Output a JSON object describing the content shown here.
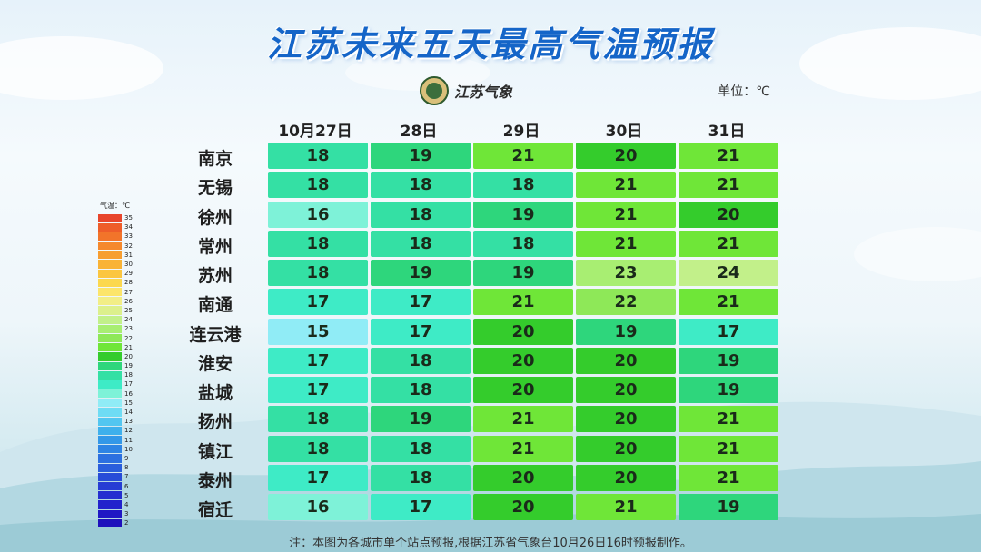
{
  "title": "江苏未来五天最高气温预报",
  "logo_text": "江苏气象",
  "unit_label": "单位：℃",
  "chart_data": {
    "type": "table",
    "columns": [
      "10月27日",
      "28日",
      "29日",
      "30日",
      "31日"
    ],
    "rows": [
      {
        "city": "南京",
        "values": [
          18,
          19,
          21,
          20,
          21
        ]
      },
      {
        "city": "无锡",
        "values": [
          18,
          18,
          18,
          21,
          21
        ]
      },
      {
        "city": "徐州",
        "values": [
          16,
          18,
          19,
          21,
          20
        ]
      },
      {
        "city": "常州",
        "values": [
          18,
          18,
          18,
          21,
          21
        ]
      },
      {
        "city": "苏州",
        "values": [
          18,
          19,
          19,
          23,
          24
        ]
      },
      {
        "city": "南通",
        "values": [
          17,
          17,
          21,
          22,
          21
        ]
      },
      {
        "city": "连云港",
        "values": [
          15,
          17,
          20,
          19,
          17
        ]
      },
      {
        "city": "淮安",
        "values": [
          17,
          18,
          20,
          20,
          19
        ]
      },
      {
        "city": "盐城",
        "values": [
          17,
          18,
          20,
          20,
          19
        ]
      },
      {
        "city": "扬州",
        "values": [
          18,
          19,
          21,
          20,
          21
        ]
      },
      {
        "city": "镇江",
        "values": [
          18,
          18,
          21,
          20,
          21
        ]
      },
      {
        "city": "泰州",
        "values": [
          17,
          18,
          20,
          20,
          21
        ]
      },
      {
        "city": "宿迁",
        "values": [
          16,
          17,
          20,
          21,
          19
        ]
      }
    ]
  },
  "legend": {
    "title": "气温：℃",
    "levels": [
      {
        "value": "35",
        "color": "#e8452c"
      },
      {
        "value": "34",
        "color": "#ee5d2a"
      },
      {
        "value": "33",
        "color": "#f2742a"
      },
      {
        "value": "32",
        "color": "#f5892c"
      },
      {
        "value": "31",
        "color": "#f79e30"
      },
      {
        "value": "30",
        "color": "#f9b336"
      },
      {
        "value": "29",
        "color": "#fbc640"
      },
      {
        "value": "28",
        "color": "#fcd84e"
      },
      {
        "value": "27",
        "color": "#fce56a"
      },
      {
        "value": "26",
        "color": "#f2ee86"
      },
      {
        "value": "25",
        "color": "#dcf08c"
      },
      {
        "value": "24",
        "color": "#c2f08a"
      },
      {
        "value": "23",
        "color": "#a8ee72"
      },
      {
        "value": "22",
        "color": "#8ee858"
      },
      {
        "value": "21",
        "color": "#6fe638"
      },
      {
        "value": "20",
        "color": "#34cc2c"
      },
      {
        "value": "19",
        "color": "#2ed67c"
      },
      {
        "value": "18",
        "color": "#34e0a4"
      },
      {
        "value": "17",
        "color": "#3eebc6"
      },
      {
        "value": "16",
        "color": "#7ef2d8"
      },
      {
        "value": "15",
        "color": "#90ecf6"
      },
      {
        "value": "14",
        "color": "#6edcf4"
      },
      {
        "value": "13",
        "color": "#52c6f0"
      },
      {
        "value": "12",
        "color": "#3eb0ec"
      },
      {
        "value": "11",
        "color": "#3398e8"
      },
      {
        "value": "10",
        "color": "#2e84e4"
      },
      {
        "value": "9",
        "color": "#2c70e0"
      },
      {
        "value": "8",
        "color": "#2a5edc"
      },
      {
        "value": "7",
        "color": "#284cd8"
      },
      {
        "value": "6",
        "color": "#263cd4"
      },
      {
        "value": "5",
        "color": "#242ed0"
      },
      {
        "value": "4",
        "color": "#2222cc"
      },
      {
        "value": "3",
        "color": "#2018c4"
      },
      {
        "value": "2",
        "color": "#1e10bc"
      }
    ]
  },
  "footnote": "注：本图为各城市单个站点预报,根据江苏省气象台10月26日16时预报制作。"
}
